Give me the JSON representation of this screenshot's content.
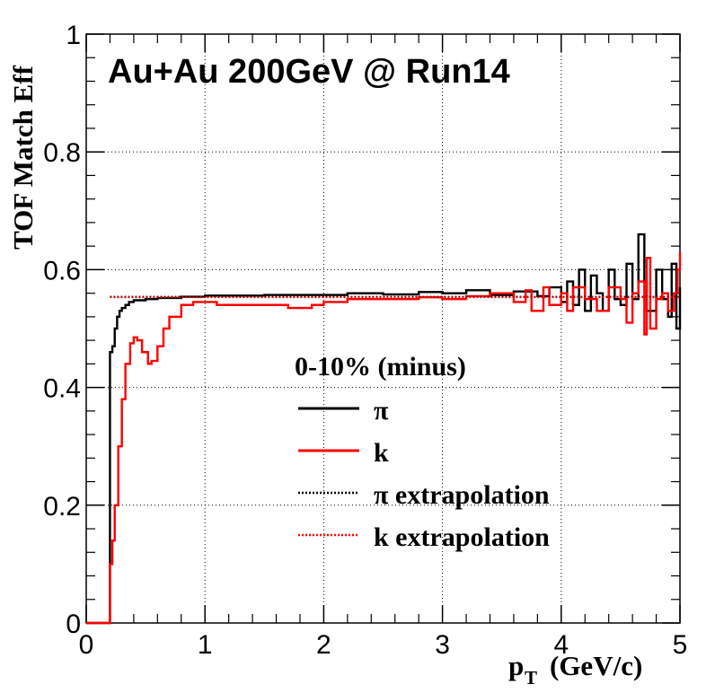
{
  "chart_data": {
    "type": "line",
    "title": "Au+Au 200GeV @ Run14",
    "xlabel": "p",
    "xlabel_sub": "T",
    "xlabel_unit": "(GeV/c)",
    "ylabel": "TOF Match Eff",
    "xlim": [
      0,
      5
    ],
    "ylim": [
      0,
      1
    ],
    "x_ticks": [
      "0",
      "1",
      "2",
      "3",
      "4",
      "5"
    ],
    "y_ticks": [
      "0",
      "0.2",
      "0.4",
      "0.6",
      "0.8",
      "1"
    ],
    "grid": true,
    "legend_header": "0-10% (minus)",
    "legend_position": "center-right",
    "series": [
      {
        "name": "π",
        "color": "#000000",
        "style": "solid",
        "points": [
          [
            0.0,
            0.0
          ],
          [
            0.19,
            0.0
          ],
          [
            0.2,
            0.46
          ],
          [
            0.22,
            0.47
          ],
          [
            0.24,
            0.5
          ],
          [
            0.26,
            0.52
          ],
          [
            0.28,
            0.53
          ],
          [
            0.3,
            0.535
          ],
          [
            0.33,
            0.54
          ],
          [
            0.36,
            0.545
          ],
          [
            0.4,
            0.548
          ],
          [
            0.5,
            0.55
          ],
          [
            0.6,
            0.552
          ],
          [
            0.8,
            0.554
          ],
          [
            1.0,
            0.556
          ],
          [
            1.5,
            0.557
          ],
          [
            2.0,
            0.557
          ],
          [
            2.2,
            0.56
          ],
          [
            2.5,
            0.558
          ],
          [
            2.8,
            0.562
          ],
          [
            3.0,
            0.56
          ],
          [
            3.2,
            0.565
          ],
          [
            3.4,
            0.557
          ],
          [
            3.6,
            0.563
          ],
          [
            3.8,
            0.555
          ],
          [
            3.9,
            0.57
          ],
          [
            4.0,
            0.545
          ],
          [
            4.05,
            0.58
          ],
          [
            4.1,
            0.54
          ],
          [
            4.15,
            0.6
          ],
          [
            4.2,
            0.53
          ],
          [
            4.25,
            0.59
          ],
          [
            4.3,
            0.56
          ],
          [
            4.35,
            0.53
          ],
          [
            4.4,
            0.6
          ],
          [
            4.45,
            0.55
          ],
          [
            4.5,
            0.54
          ],
          [
            4.55,
            0.61
          ],
          [
            4.6,
            0.55
          ],
          [
            4.65,
            0.66
          ],
          [
            4.7,
            0.58
          ],
          [
            4.72,
            0.53
          ],
          [
            4.8,
            0.6
          ],
          [
            4.85,
            0.55
          ],
          [
            4.9,
            0.52
          ],
          [
            4.93,
            0.61
          ],
          [
            4.97,
            0.5
          ],
          [
            5.0,
            0.57
          ]
        ]
      },
      {
        "name": "k",
        "color": "#ff0000",
        "style": "solid",
        "points": [
          [
            0.0,
            0.0
          ],
          [
            0.19,
            0.0
          ],
          [
            0.2,
            0.1
          ],
          [
            0.22,
            0.14
          ],
          [
            0.24,
            0.2
          ],
          [
            0.27,
            0.3
          ],
          [
            0.3,
            0.38
          ],
          [
            0.33,
            0.44
          ],
          [
            0.37,
            0.475
          ],
          [
            0.4,
            0.485
          ],
          [
            0.43,
            0.48
          ],
          [
            0.47,
            0.46
          ],
          [
            0.52,
            0.44
          ],
          [
            0.55,
            0.445
          ],
          [
            0.6,
            0.47
          ],
          [
            0.65,
            0.5
          ],
          [
            0.7,
            0.52
          ],
          [
            0.8,
            0.54
          ],
          [
            0.9,
            0.545
          ],
          [
            1.0,
            0.545
          ],
          [
            1.1,
            0.54
          ],
          [
            1.3,
            0.54
          ],
          [
            1.5,
            0.54
          ],
          [
            1.7,
            0.535
          ],
          [
            1.9,
            0.54
          ],
          [
            2.0,
            0.545
          ],
          [
            2.2,
            0.55
          ],
          [
            2.5,
            0.55
          ],
          [
            2.8,
            0.553
          ],
          [
            3.0,
            0.55
          ],
          [
            3.2,
            0.555
          ],
          [
            3.4,
            0.56
          ],
          [
            3.6,
            0.545
          ],
          [
            3.7,
            0.565
          ],
          [
            3.75,
            0.53
          ],
          [
            3.85,
            0.57
          ],
          [
            3.9,
            0.54
          ],
          [
            4.0,
            0.56
          ],
          [
            4.05,
            0.53
          ],
          [
            4.1,
            0.57
          ],
          [
            4.2,
            0.55
          ],
          [
            4.3,
            0.53
          ],
          [
            4.4,
            0.57
          ],
          [
            4.5,
            0.55
          ],
          [
            4.55,
            0.51
          ],
          [
            4.6,
            0.56
          ],
          [
            4.65,
            0.58
          ],
          [
            4.7,
            0.49
          ],
          [
            4.72,
            0.62
          ],
          [
            4.75,
            0.5
          ],
          [
            4.8,
            0.55
          ],
          [
            4.85,
            0.56
          ],
          [
            4.9,
            0.53
          ],
          [
            4.95,
            0.56
          ],
          [
            4.98,
            0.6
          ],
          [
            5.0,
            0.63
          ]
        ]
      },
      {
        "name": "π extrapolation",
        "color": "#000000",
        "style": "dotted",
        "points": [
          [
            0.2,
            0.554
          ],
          [
            5.0,
            0.554
          ]
        ]
      },
      {
        "name": "k extrapolation",
        "color": "#ff0000",
        "style": "dotted",
        "points": [
          [
            0.2,
            0.553
          ],
          [
            5.0,
            0.553
          ]
        ]
      }
    ]
  }
}
